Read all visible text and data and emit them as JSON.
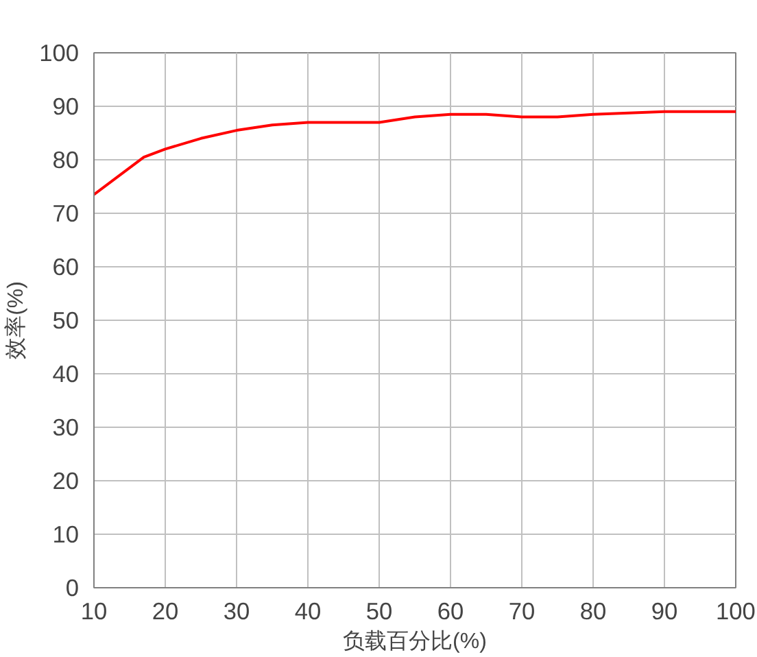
{
  "chart_data": {
    "type": "line",
    "xlabel": "负载百分比(%)",
    "ylabel": "效率(%)",
    "x": [
      10,
      17,
      20,
      25,
      30,
      35,
      40,
      45,
      50,
      55,
      60,
      65,
      70,
      75,
      80,
      90,
      100
    ],
    "series": [
      {
        "color": "#ff0000",
        "values": [
          73.5,
          80.5,
          82,
          84,
          85.5,
          86.5,
          87,
          87,
          87,
          88,
          88.5,
          88.5,
          88,
          88,
          88.5,
          89,
          89
        ]
      }
    ],
    "xlim": [
      10,
      100
    ],
    "xticks": [
      10,
      20,
      30,
      40,
      50,
      60,
      70,
      80,
      90,
      100
    ],
    "ylim": [
      0,
      100
    ],
    "yticks": [
      0,
      10,
      20,
      30,
      40,
      50,
      60,
      70,
      80,
      90,
      100
    ],
    "grid": true,
    "marker": "none",
    "line_style": "solid"
  }
}
